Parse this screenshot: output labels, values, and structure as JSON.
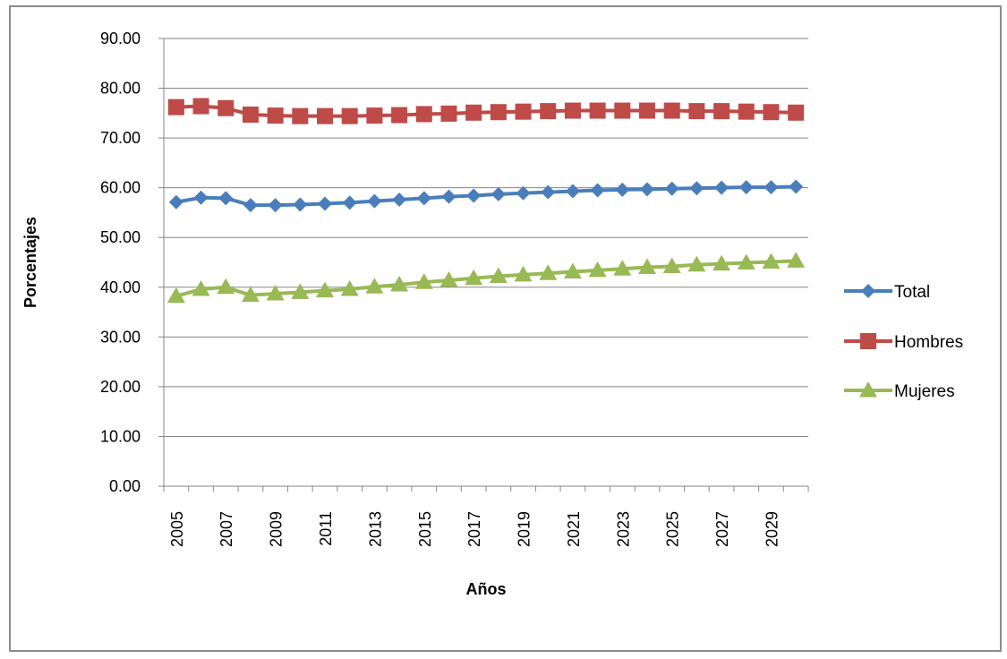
{
  "chart_data": {
    "type": "line",
    "title": "",
    "xlabel": "Años",
    "ylabel": "Porcentajes",
    "ylim": [
      0,
      90
    ],
    "yticks": [
      "0.00",
      "10.00",
      "20.00",
      "30.00",
      "40.00",
      "50.00",
      "60.00",
      "70.00",
      "80.00",
      "90.00"
    ],
    "x": [
      2005,
      2006,
      2007,
      2008,
      2009,
      2010,
      2011,
      2012,
      2013,
      2014,
      2015,
      2016,
      2017,
      2018,
      2019,
      2020,
      2021,
      2022,
      2023,
      2024,
      2025,
      2026,
      2027,
      2028,
      2029,
      2030
    ],
    "xtick_labels": [
      "2005",
      "2007",
      "2009",
      "2011",
      "2013",
      "2015",
      "2017",
      "2019",
      "2021",
      "2023",
      "2025",
      "2027",
      "2029"
    ],
    "grid": "horizontal",
    "legend_position": "right",
    "series": [
      {
        "name": "Total",
        "color": "#4a7ebb",
        "marker": "diamond",
        "values": [
          57.1,
          58.0,
          57.9,
          56.5,
          56.5,
          56.6,
          56.8,
          57.0,
          57.3,
          57.6,
          57.9,
          58.2,
          58.4,
          58.7,
          58.9,
          59.1,
          59.3,
          59.5,
          59.6,
          59.7,
          59.8,
          59.9,
          60.0,
          60.1,
          60.1,
          60.2
        ]
      },
      {
        "name": "Hombres",
        "color": "#be4b48",
        "marker": "square",
        "values": [
          76.2,
          76.4,
          76.0,
          74.7,
          74.5,
          74.4,
          74.4,
          74.4,
          74.5,
          74.6,
          74.8,
          74.9,
          75.1,
          75.2,
          75.3,
          75.4,
          75.5,
          75.5,
          75.5,
          75.5,
          75.5,
          75.4,
          75.4,
          75.3,
          75.2,
          75.1
        ]
      },
      {
        "name": "Mujeres",
        "color": "#98b954",
        "marker": "triangle",
        "values": [
          38.2,
          39.6,
          40.0,
          38.4,
          38.7,
          39.0,
          39.3,
          39.6,
          40.1,
          40.5,
          41.0,
          41.4,
          41.8,
          42.2,
          42.5,
          42.8,
          43.1,
          43.4,
          43.7,
          44.0,
          44.2,
          44.5,
          44.7,
          44.9,
          45.1,
          45.3
        ]
      }
    ]
  }
}
